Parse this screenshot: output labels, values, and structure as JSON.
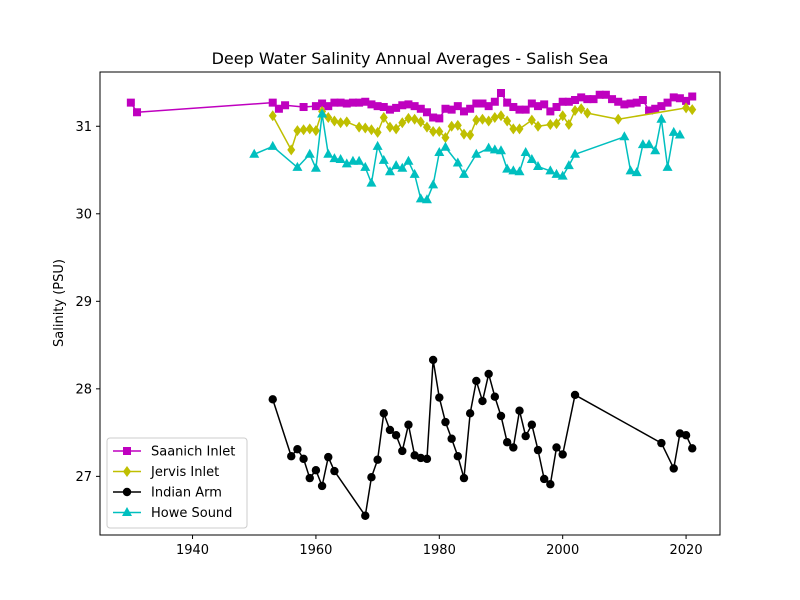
{
  "chart_data": {
    "type": "line",
    "title": "Deep Water Salinity Annual Averages - Salish Sea",
    "xlabel": "",
    "ylabel": "Salinity (PSU)",
    "xlim": [
      1925.0,
      2025.5
    ],
    "ylim": [
      26.33,
      31.62
    ],
    "xticks": [
      1940,
      1960,
      1980,
      2000,
      2020
    ],
    "yticks": [
      27,
      28,
      29,
      30,
      31
    ],
    "grid": false,
    "legend": "lower-left",
    "series": [
      {
        "name": "Saanich Inlet",
        "color": "#bf00bf",
        "marker": "square",
        "x": [
          1930,
          1931,
          1953,
          1954,
          1955,
          1958,
          1960,
          1961,
          1962,
          1963,
          1964,
          1965,
          1966,
          1967,
          1968,
          1969,
          1970,
          1971,
          1972,
          1973,
          1974,
          1975,
          1976,
          1977,
          1978,
          1979,
          1980,
          1981,
          1982,
          1983,
          1984,
          1985,
          1986,
          1987,
          1988,
          1989,
          1990,
          1991,
          1992,
          1993,
          1994,
          1995,
          1996,
          1997,
          1998,
          1999,
          2000,
          2001,
          2002,
          2003,
          2004,
          2005,
          2006,
          2007,
          2008,
          2009,
          2010,
          2011,
          2012,
          2013,
          2014,
          2015,
          2016,
          2017,
          2018,
          2019,
          2020,
          2021
        ],
        "y": [
          31.27,
          31.16,
          31.27,
          31.2,
          31.24,
          31.22,
          31.23,
          31.26,
          31.23,
          31.27,
          31.27,
          31.26,
          31.27,
          31.27,
          31.28,
          31.25,
          31.23,
          31.22,
          31.19,
          31.21,
          31.24,
          31.25,
          31.23,
          31.2,
          31.16,
          31.1,
          31.09,
          31.2,
          31.19,
          31.23,
          31.17,
          31.2,
          31.26,
          31.26,
          31.23,
          31.28,
          31.38,
          31.27,
          31.22,
          31.19,
          31.19,
          31.26,
          31.23,
          31.25,
          31.17,
          31.22,
          31.28,
          31.28,
          31.3,
          31.33,
          31.31,
          31.31,
          31.36,
          31.36,
          31.31,
          31.28,
          31.25,
          31.26,
          31.27,
          31.3,
          31.18,
          31.2,
          31.23,
          31.27,
          31.33,
          31.32,
          31.29,
          31.34
        ]
      },
      {
        "name": "Jervis Inlet",
        "color": "#bfbf00",
        "marker": "diamond",
        "x": [
          1953,
          1956,
          1957,
          1958,
          1959,
          1960,
          1961,
          1962,
          1963,
          1964,
          1965,
          1967,
          1968,
          1969,
          1970,
          1971,
          1972,
          1973,
          1974,
          1975,
          1976,
          1977,
          1978,
          1979,
          1980,
          1981,
          1982,
          1983,
          1984,
          1985,
          1986,
          1987,
          1988,
          1989,
          1990,
          1991,
          1992,
          1993,
          1995,
          1996,
          1998,
          1999,
          2000,
          2001,
          2002,
          2003,
          2004,
          2009,
          2020,
          2021
        ],
        "y": [
          31.12,
          30.73,
          30.95,
          30.96,
          30.97,
          30.95,
          31.17,
          31.1,
          31.06,
          31.04,
          31.05,
          30.99,
          30.98,
          30.96,
          30.93,
          31.1,
          30.99,
          30.97,
          31.04,
          31.09,
          31.08,
          31.05,
          30.99,
          30.94,
          30.94,
          30.87,
          31.0,
          31.01,
          30.91,
          30.9,
          31.07,
          31.08,
          31.06,
          31.1,
          31.12,
          31.06,
          30.97,
          30.97,
          31.07,
          31.0,
          31.02,
          31.03,
          31.12,
          31.02,
          31.18,
          31.2,
          31.15,
          31.08,
          31.21,
          31.19
        ]
      },
      {
        "name": "Indian Arm",
        "color": "#000000",
        "marker": "circle",
        "x": [
          1953,
          1956,
          1957,
          1958,
          1959,
          1960,
          1961,
          1962,
          1963,
          1968,
          1969,
          1970,
          1971,
          1972,
          1973,
          1974,
          1975,
          1976,
          1977,
          1978,
          1979,
          1980,
          1981,
          1982,
          1983,
          1984,
          1985,
          1986,
          1987,
          1988,
          1989,
          1990,
          1991,
          1992,
          1993,
          1994,
          1995,
          1996,
          1997,
          1998,
          1999,
          2000,
          2002,
          2016,
          2018,
          2019,
          2020,
          2021
        ],
        "y": [
          27.88,
          27.23,
          27.31,
          27.2,
          26.98,
          27.07,
          26.89,
          27.22,
          27.06,
          26.55,
          26.99,
          27.19,
          27.72,
          27.53,
          27.47,
          27.29,
          27.59,
          27.24,
          27.21,
          27.2,
          28.33,
          27.9,
          27.62,
          27.43,
          27.23,
          26.98,
          27.72,
          28.09,
          27.86,
          28.17,
          27.91,
          27.69,
          27.39,
          27.33,
          27.75,
          27.46,
          27.59,
          27.3,
          26.97,
          26.91,
          27.33,
          27.25,
          27.93,
          27.38,
          27.09,
          27.49,
          27.47,
          27.32
        ]
      },
      {
        "name": "Howe Sound",
        "color": "#00bfbf",
        "marker": "triangle",
        "x": [
          1950,
          1953,
          1957,
          1959,
          1960,
          1961,
          1962,
          1963,
          1964,
          1965,
          1966,
          1967,
          1968,
          1969,
          1970,
          1971,
          1972,
          1973,
          1974,
          1975,
          1976,
          1977,
          1978,
          1979,
          1980,
          1981,
          1983,
          1984,
          1986,
          1988,
          1989,
          1990,
          1991,
          1992,
          1993,
          1994,
          1995,
          1996,
          1998,
          1999,
          2000,
          2001,
          2002,
          2010,
          2011,
          2012,
          2013,
          2014,
          2015,
          2016,
          2017,
          2018,
          2019
        ],
        "y": [
          30.68,
          30.77,
          30.53,
          30.68,
          30.52,
          31.14,
          30.68,
          30.63,
          30.62,
          30.57,
          30.6,
          30.6,
          30.53,
          30.35,
          30.77,
          30.61,
          30.48,
          30.55,
          30.52,
          30.6,
          30.45,
          30.17,
          30.16,
          30.33,
          30.7,
          30.76,
          30.58,
          30.45,
          30.68,
          30.75,
          30.73,
          30.72,
          30.51,
          30.49,
          30.48,
          30.7,
          30.62,
          30.54,
          30.49,
          30.45,
          30.43,
          30.55,
          30.68,
          30.88,
          30.49,
          30.47,
          30.79,
          30.79,
          30.72,
          31.08,
          30.53,
          30.93,
          30.9
        ]
      }
    ]
  }
}
